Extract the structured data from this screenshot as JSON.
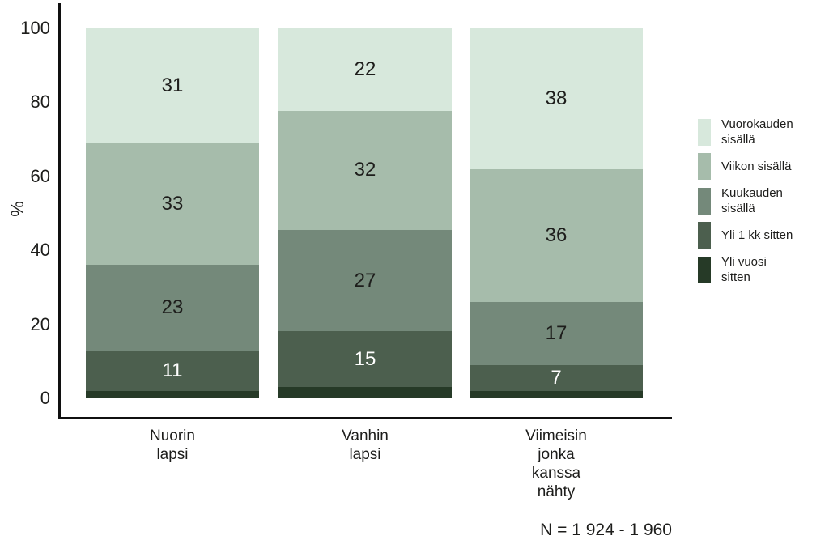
{
  "chart_data": {
    "type": "bar",
    "stacked": true,
    "title": "",
    "ylabel": "%",
    "ylim": [
      0,
      100
    ],
    "y_ticks": [
      0,
      20,
      40,
      60,
      80,
      100
    ],
    "grid": false,
    "legend_position": "right",
    "categories": [
      [
        "Nuorin",
        "lapsi"
      ],
      [
        "Vanhin",
        "lapsi"
      ],
      [
        "Viimeisin",
        "jonka",
        "kanssa",
        "nähty"
      ]
    ],
    "series": [
      {
        "name": "Vuorokauden sisällä",
        "legend_lines": [
          "Vuorokauden",
          "sisällä"
        ],
        "color": "#d7e8dc",
        "text_color": "#1d1d1b",
        "show_value_labels": true,
        "values": [
          31,
          22,
          38
        ]
      },
      {
        "name": "Viikon sisällä",
        "legend_lines": [
          "Viikon sisällä"
        ],
        "color": "#a6bcab",
        "text_color": "#1d1d1b",
        "show_value_labels": true,
        "values": [
          33,
          32,
          36
        ]
      },
      {
        "name": "Kuukauden sisällä",
        "legend_lines": [
          "Kuukauden",
          "sisällä"
        ],
        "color": "#74897a",
        "text_color": "#1d1d1b",
        "show_value_labels": true,
        "values": [
          23,
          27,
          17
        ]
      },
      {
        "name": "Yli 1 kk sitten",
        "legend_lines": [
          "Yli 1 kk sitten"
        ],
        "color": "#4c5f4e",
        "text_color": "#ffffff",
        "show_value_labels": true,
        "values": [
          11,
          15,
          7
        ]
      },
      {
        "name": "Yli vuosi sitten",
        "legend_lines": [
          "Yli vuosi",
          "sitten"
        ],
        "color": "#263a27",
        "text_color": "#ffffff",
        "show_value_labels": false,
        "values": [
          2,
          3,
          2
        ]
      }
    ],
    "footnote": "N = 1 924 - 1 960"
  }
}
